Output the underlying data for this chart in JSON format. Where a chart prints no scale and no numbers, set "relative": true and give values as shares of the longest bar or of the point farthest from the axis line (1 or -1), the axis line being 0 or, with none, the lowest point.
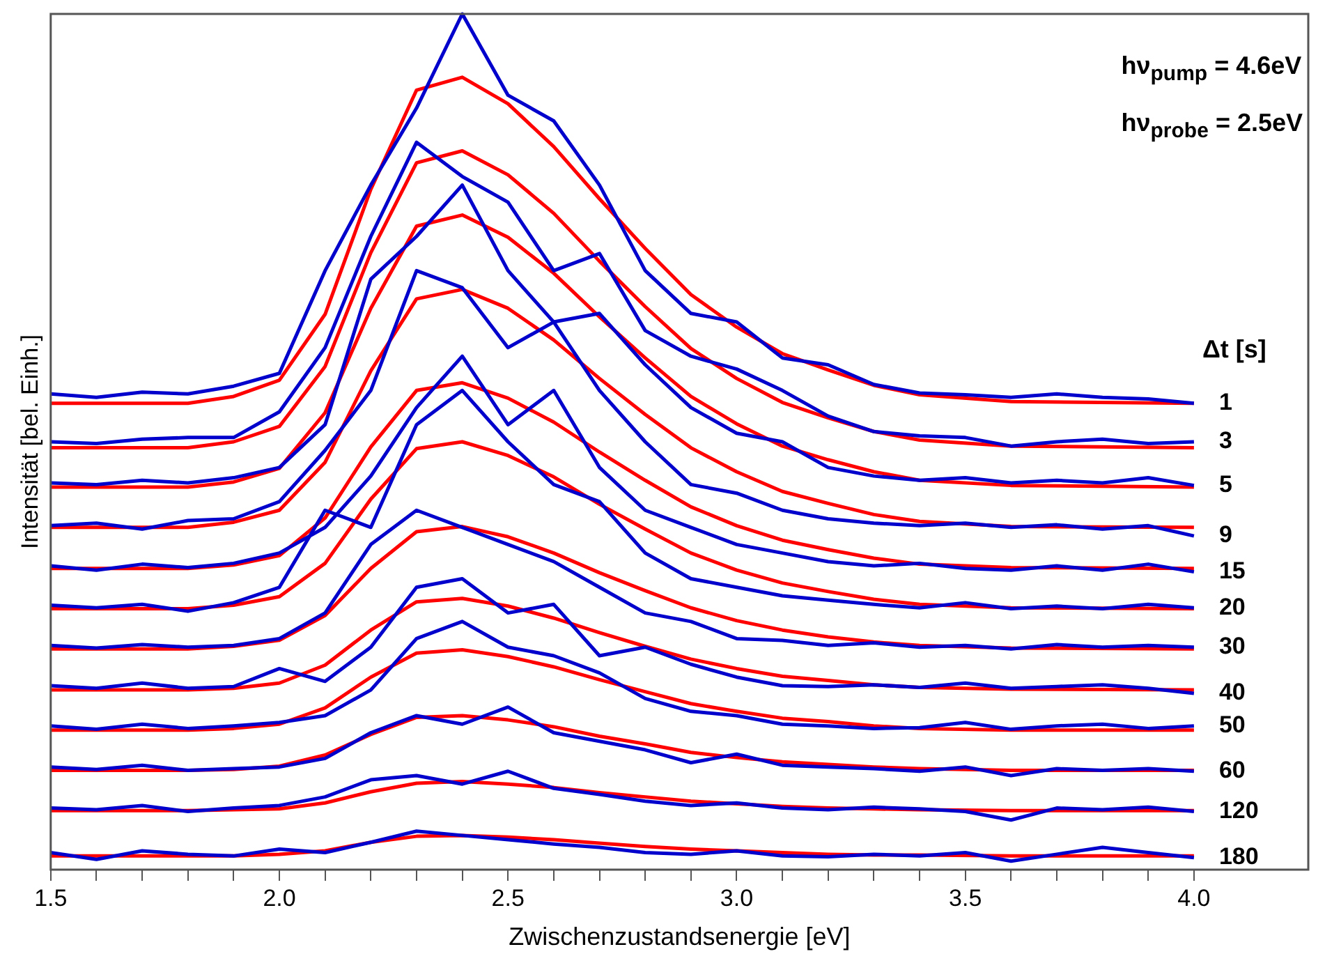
{
  "chart_data": {
    "type": "line",
    "relative": true,
    "xlabel": "Zwischenzustandsenergie [eV]",
    "ylabel": "Intensität [bel. Einh.]",
    "legend_title": "Δt [s]",
    "annotations": [
      "hν$_{pump}$ = 4.6eV",
      "hν$_{probe}$ = 2.5eV"
    ],
    "xlim": [
      1.5,
      4.25
    ],
    "xticks": [
      1.5,
      {
        "value": 1.6,
        "label": null
      },
      {
        "value": 1.7,
        "label": null
      },
      {
        "value": 1.8,
        "label": null
      },
      {
        "value": 1.9,
        "label": null
      },
      {
        "value": 2,
        "label": "2.0"
      },
      {
        "value": 2.1,
        "label": null
      },
      {
        "value": 2.2,
        "label": null
      },
      {
        "value": 2.3,
        "label": null
      },
      {
        "value": 2.4,
        "label": null
      },
      2.5,
      {
        "value": 2.6,
        "label": null
      },
      {
        "value": 2.7,
        "label": null
      },
      {
        "value": 2.8,
        "label": null
      },
      {
        "value": 2.9,
        "label": null
      },
      {
        "value": 3,
        "label": "3.0"
      },
      {
        "value": 3.1,
        "label": null
      },
      {
        "value": 3.2,
        "label": null
      },
      {
        "value": 3.3,
        "label": null
      },
      {
        "value": 3.4,
        "label": null
      },
      3.5,
      {
        "value": 3.6,
        "label": null
      },
      {
        "value": 3.7,
        "label": null
      },
      {
        "value": 3.8,
        "label": null
      },
      {
        "value": 3.9,
        "label": null
      },
      {
        "value": 4,
        "label": "4.0"
      }
    ],
    "grid": false,
    "legend": false,
    "marker": "none",
    "line_style": "solid",
    "series": [
      {
        "name": "1",
        "color": "#0000cc",
        "x": [
          1.5,
          1.6,
          1.7,
          1.8,
          1.9,
          2.0,
          2.1,
          2.2,
          2.3,
          2.4,
          2.5,
          2.6,
          2.7,
          2.8,
          2.9,
          3.0,
          3.1,
          3.2,
          3.3,
          3.4,
          3.5,
          3.6,
          3.7,
          3.8,
          3.9,
          4.0
        ],
        "values": [
          0.556,
          0.552,
          0.558,
          0.556,
          0.565,
          0.58,
          0.7,
          0.8,
          0.89,
          1.0,
          0.905,
          0.875,
          0.8,
          0.7,
          0.65,
          0.64,
          0.598,
          0.59,
          0.567,
          0.557,
          0.555,
          0.552,
          0.556,
          0.552,
          0.55,
          0.545
        ]
      },
      {
        "name": "3",
        "color": "#0000cc",
        "x": [
          1.5,
          1.6,
          1.7,
          1.8,
          1.9,
          2.0,
          2.1,
          2.2,
          2.3,
          2.4,
          2.5,
          2.6,
          2.7,
          2.8,
          2.9,
          3.0,
          3.1,
          3.2,
          3.3,
          3.4,
          3.5,
          3.6,
          3.7,
          3.8,
          3.9,
          4.0
        ],
        "values": [
          0.5,
          0.498,
          0.503,
          0.505,
          0.505,
          0.535,
          0.61,
          0.74,
          0.85,
          0.81,
          0.78,
          0.7,
          0.72,
          0.63,
          0.6,
          0.585,
          0.56,
          0.53,
          0.512,
          0.507,
          0.505,
          0.495,
          0.5,
          0.503,
          0.498,
          0.5
        ]
      },
      {
        "name": "5",
        "color": "#0000cc",
        "x": [
          1.5,
          1.6,
          1.7,
          1.8,
          1.9,
          2.0,
          2.1,
          2.2,
          2.3,
          2.4,
          2.5,
          2.6,
          2.7,
          2.8,
          2.9,
          3.0,
          3.1,
          3.2,
          3.3,
          3.4,
          3.5,
          3.6,
          3.7,
          3.8,
          3.9,
          4.0
        ],
        "values": [
          0.452,
          0.45,
          0.455,
          0.452,
          0.458,
          0.47,
          0.52,
          0.69,
          0.74,
          0.8,
          0.7,
          0.64,
          0.65,
          0.59,
          0.54,
          0.51,
          0.5,
          0.47,
          0.46,
          0.455,
          0.458,
          0.452,
          0.455,
          0.452,
          0.458,
          0.449
        ]
      },
      {
        "name": "9",
        "color": "#0000cc",
        "x": [
          1.5,
          1.6,
          1.7,
          1.8,
          1.9,
          2.0,
          2.1,
          2.2,
          2.3,
          2.4,
          2.5,
          2.6,
          2.7,
          2.8,
          2.9,
          3.0,
          3.1,
          3.2,
          3.3,
          3.4,
          3.5,
          3.6,
          3.7,
          3.8,
          3.9,
          4.0
        ],
        "values": [
          0.402,
          0.405,
          0.398,
          0.408,
          0.41,
          0.43,
          0.49,
          0.56,
          0.7,
          0.68,
          0.61,
          0.64,
          0.56,
          0.5,
          0.45,
          0.44,
          0.42,
          0.41,
          0.405,
          0.402,
          0.405,
          0.4,
          0.403,
          0.398,
          0.402,
          0.39
        ]
      },
      {
        "name": "15",
        "color": "#0000cc",
        "x": [
          1.5,
          1.6,
          1.7,
          1.8,
          1.9,
          2.0,
          2.1,
          2.2,
          2.3,
          2.4,
          2.5,
          2.6,
          2.7,
          2.8,
          2.9,
          3.0,
          3.1,
          3.2,
          3.3,
          3.4,
          3.5,
          3.6,
          3.7,
          3.8,
          3.9,
          4.0
        ],
        "values": [
          0.355,
          0.35,
          0.357,
          0.353,
          0.358,
          0.37,
          0.4,
          0.46,
          0.54,
          0.6,
          0.52,
          0.56,
          0.47,
          0.42,
          0.4,
          0.38,
          0.37,
          0.36,
          0.355,
          0.358,
          0.352,
          0.35,
          0.355,
          0.35,
          0.357,
          0.348
        ]
      },
      {
        "name": "20",
        "color": "#0000cc",
        "x": [
          1.5,
          1.6,
          1.7,
          1.8,
          1.9,
          2.0,
          2.1,
          2.2,
          2.3,
          2.4,
          2.5,
          2.6,
          2.7,
          2.8,
          2.9,
          3.0,
          3.1,
          3.2,
          3.3,
          3.4,
          3.5,
          3.6,
          3.7,
          3.8,
          3.9,
          4.0
        ],
        "values": [
          0.309,
          0.306,
          0.31,
          0.302,
          0.312,
          0.33,
          0.42,
          0.4,
          0.52,
          0.56,
          0.5,
          0.45,
          0.43,
          0.37,
          0.34,
          0.33,
          0.32,
          0.315,
          0.31,
          0.306,
          0.312,
          0.305,
          0.308,
          0.305,
          0.31,
          0.306
        ]
      },
      {
        "name": "30",
        "color": "#0000cc",
        "x": [
          1.5,
          1.6,
          1.7,
          1.8,
          1.9,
          2.0,
          2.1,
          2.2,
          2.3,
          2.4,
          2.5,
          2.6,
          2.7,
          2.8,
          2.9,
          3.0,
          3.1,
          3.2,
          3.3,
          3.4,
          3.5,
          3.6,
          3.7,
          3.8,
          3.9,
          4.0
        ],
        "values": [
          0.262,
          0.259,
          0.263,
          0.26,
          0.262,
          0.27,
          0.3,
          0.38,
          0.42,
          0.4,
          0.38,
          0.36,
          0.33,
          0.3,
          0.29,
          0.27,
          0.268,
          0.262,
          0.265,
          0.26,
          0.262,
          0.258,
          0.263,
          0.26,
          0.262,
          0.26
        ]
      },
      {
        "name": "40",
        "color": "#0000cc",
        "x": [
          1.5,
          1.6,
          1.7,
          1.8,
          1.9,
          2.0,
          2.1,
          2.2,
          2.3,
          2.4,
          2.5,
          2.6,
          2.7,
          2.8,
          2.9,
          3.0,
          3.1,
          3.2,
          3.3,
          3.4,
          3.5,
          3.6,
          3.7,
          3.8,
          3.9,
          4.0
        ],
        "values": [
          0.215,
          0.212,
          0.218,
          0.212,
          0.214,
          0.235,
          0.22,
          0.26,
          0.33,
          0.34,
          0.3,
          0.31,
          0.25,
          0.26,
          0.24,
          0.225,
          0.215,
          0.214,
          0.216,
          0.213,
          0.218,
          0.212,
          0.214,
          0.216,
          0.212,
          0.206
        ]
      },
      {
        "name": "50",
        "color": "#0000cc",
        "x": [
          1.5,
          1.6,
          1.7,
          1.8,
          1.9,
          2.0,
          2.1,
          2.2,
          2.3,
          2.4,
          2.5,
          2.6,
          2.7,
          2.8,
          2.9,
          3.0,
          3.1,
          3.2,
          3.3,
          3.4,
          3.5,
          3.6,
          3.7,
          3.8,
          3.9,
          4.0
        ],
        "values": [
          0.168,
          0.164,
          0.17,
          0.165,
          0.168,
          0.172,
          0.18,
          0.21,
          0.27,
          0.29,
          0.26,
          0.25,
          0.23,
          0.2,
          0.185,
          0.18,
          0.17,
          0.168,
          0.165,
          0.166,
          0.172,
          0.164,
          0.168,
          0.17,
          0.165,
          0.168
        ]
      },
      {
        "name": "60",
        "color": "#0000cc",
        "x": [
          1.5,
          1.6,
          1.7,
          1.8,
          1.9,
          2.0,
          2.1,
          2.2,
          2.3,
          2.4,
          2.5,
          2.6,
          2.7,
          2.8,
          2.9,
          3.0,
          3.1,
          3.2,
          3.3,
          3.4,
          3.5,
          3.6,
          3.7,
          3.8,
          3.9,
          4.0
        ],
        "values": [
          0.12,
          0.117,
          0.122,
          0.116,
          0.118,
          0.12,
          0.13,
          0.16,
          0.18,
          0.17,
          0.19,
          0.16,
          0.15,
          0.14,
          0.125,
          0.135,
          0.122,
          0.12,
          0.118,
          0.115,
          0.12,
          0.11,
          0.118,
          0.116,
          0.118,
          0.115
        ]
      },
      {
        "name": "120",
        "color": "#0000cc",
        "x": [
          1.5,
          1.6,
          1.7,
          1.8,
          1.9,
          2.0,
          2.1,
          2.2,
          2.3,
          2.4,
          2.5,
          2.6,
          2.7,
          2.8,
          2.9,
          3.0,
          3.1,
          3.2,
          3.3,
          3.4,
          3.5,
          3.6,
          3.7,
          3.8,
          3.9,
          4.0
        ],
        "values": [
          0.072,
          0.07,
          0.075,
          0.068,
          0.072,
          0.075,
          0.085,
          0.105,
          0.11,
          0.1,
          0.115,
          0.095,
          0.088,
          0.08,
          0.075,
          0.078,
          0.072,
          0.07,
          0.073,
          0.071,
          0.068,
          0.058,
          0.072,
          0.07,
          0.073,
          0.068
        ]
      },
      {
        "name": "180",
        "color": "#0000cc",
        "x": [
          1.5,
          1.6,
          1.7,
          1.8,
          1.9,
          2.0,
          2.1,
          2.2,
          2.3,
          2.4,
          2.5,
          2.6,
          2.7,
          2.8,
          2.9,
          3.0,
          3.1,
          3.2,
          3.3,
          3.4,
          3.5,
          3.6,
          3.7,
          3.8,
          3.9,
          4.0
        ],
        "values": [
          0.02,
          0.012,
          0.022,
          0.018,
          0.016,
          0.024,
          0.02,
          0.032,
          0.045,
          0.04,
          0.035,
          0.03,
          0.026,
          0.02,
          0.018,
          0.022,
          0.016,
          0.015,
          0.018,
          0.016,
          0.02,
          0.01,
          0.018,
          0.026,
          0.02,
          0.014
        ]
      },
      {
        "color": "#ff0000",
        "x": [
          1.5,
          1.8,
          1.9,
          2.0,
          2.1,
          2.2,
          2.3,
          2.4,
          2.5,
          2.6,
          2.7,
          2.8,
          2.9,
          3.0,
          3.1,
          3.2,
          3.3,
          3.4,
          3.6,
          4.0
        ],
        "values": [
          0.545,
          0.545,
          0.553,
          0.572,
          0.649,
          0.795,
          0.911,
          0.926,
          0.895,
          0.845,
          0.784,
          0.726,
          0.672,
          0.634,
          0.603,
          0.584,
          0.566,
          0.555,
          0.547,
          0.545
        ]
      },
      {
        "color": "#ff0000",
        "x": [
          1.5,
          1.8,
          1.9,
          2.0,
          2.1,
          2.2,
          2.3,
          2.4,
          2.5,
          2.6,
          2.7,
          2.8,
          2.9,
          3.0,
          3.1,
          3.2,
          3.3,
          3.4,
          3.6,
          4.0
        ],
        "values": [
          0.493,
          0.493,
          0.5,
          0.518,
          0.588,
          0.721,
          0.826,
          0.84,
          0.812,
          0.767,
          0.711,
          0.658,
          0.609,
          0.574,
          0.546,
          0.528,
          0.512,
          0.502,
          0.495,
          0.493
        ]
      },
      {
        "color": "#ff0000",
        "x": [
          1.5,
          1.8,
          1.9,
          2.0,
          2.1,
          2.2,
          2.3,
          2.4,
          2.5,
          2.6,
          2.7,
          2.8,
          2.9,
          3.0,
          3.1,
          3.2,
          3.3,
          3.4,
          3.6,
          4.0
        ],
        "values": [
          0.447,
          0.447,
          0.453,
          0.469,
          0.534,
          0.656,
          0.752,
          0.765,
          0.739,
          0.697,
          0.646,
          0.598,
          0.553,
          0.521,
          0.495,
          0.479,
          0.465,
          0.455,
          0.449,
          0.447
        ]
      },
      {
        "color": "#ff0000",
        "x": [
          1.5,
          1.8,
          1.9,
          2.0,
          2.1,
          2.2,
          2.3,
          2.4,
          2.5,
          2.6,
          2.7,
          2.8,
          2.9,
          3.0,
          3.1,
          3.2,
          3.3,
          3.4,
          3.6,
          4.0
        ],
        "values": [
          0.4,
          0.4,
          0.406,
          0.42,
          0.476,
          0.583,
          0.667,
          0.678,
          0.656,
          0.619,
          0.574,
          0.532,
          0.493,
          0.465,
          0.442,
          0.428,
          0.415,
          0.407,
          0.401,
          0.4
        ]
      },
      {
        "color": "#ff0000",
        "x": [
          1.5,
          1.8,
          1.9,
          2.0,
          2.1,
          2.2,
          2.3,
          2.4,
          2.5,
          2.6,
          2.7,
          2.8,
          2.9,
          3.0,
          3.1,
          3.2,
          3.3,
          3.4,
          3.6,
          4.0
        ],
        "values": [
          0.352,
          0.352,
          0.356,
          0.367,
          0.411,
          0.494,
          0.56,
          0.569,
          0.551,
          0.523,
          0.488,
          0.455,
          0.424,
          0.402,
          0.385,
          0.374,
          0.364,
          0.357,
          0.353,
          0.352
        ]
      },
      {
        "color": "#ff0000",
        "x": [
          1.5,
          1.8,
          1.9,
          2.0,
          2.1,
          2.2,
          2.3,
          2.4,
          2.5,
          2.6,
          2.7,
          2.8,
          2.9,
          3.0,
          3.1,
          3.2,
          3.3,
          3.4,
          3.6,
          4.0
        ],
        "values": [
          0.305,
          0.305,
          0.309,
          0.319,
          0.358,
          0.433,
          0.492,
          0.5,
          0.484,
          0.459,
          0.427,
          0.398,
          0.37,
          0.35,
          0.335,
          0.325,
          0.316,
          0.31,
          0.306,
          0.305
        ]
      },
      {
        "color": "#ff0000",
        "x": [
          1.5,
          1.8,
          1.9,
          2.0,
          2.1,
          2.2,
          2.3,
          2.4,
          2.5,
          2.6,
          2.7,
          2.8,
          2.9,
          3.0,
          3.1,
          3.2,
          3.3,
          3.4,
          3.6,
          4.0
        ],
        "values": [
          0.258,
          0.258,
          0.261,
          0.268,
          0.297,
          0.352,
          0.395,
          0.401,
          0.389,
          0.37,
          0.347,
          0.326,
          0.306,
          0.291,
          0.28,
          0.272,
          0.266,
          0.262,
          0.259,
          0.258
        ]
      },
      {
        "color": "#ff0000",
        "x": [
          1.5,
          1.8,
          1.9,
          2.0,
          2.1,
          2.2,
          2.3,
          2.4,
          2.5,
          2.6,
          2.7,
          2.8,
          2.9,
          3.0,
          3.1,
          3.2,
          3.3,
          3.4,
          3.6,
          4.0
        ],
        "values": [
          0.21,
          0.21,
          0.212,
          0.218,
          0.239,
          0.28,
          0.313,
          0.317,
          0.308,
          0.294,
          0.277,
          0.261,
          0.246,
          0.235,
          0.226,
          0.221,
          0.216,
          0.213,
          0.211,
          0.21
        ]
      },
      {
        "color": "#ff0000",
        "x": [
          1.5,
          1.8,
          1.9,
          2.0,
          2.1,
          2.2,
          2.3,
          2.4,
          2.5,
          2.6,
          2.7,
          2.8,
          2.9,
          3.0,
          3.1,
          3.2,
          3.3,
          3.4,
          3.6,
          4.0
        ],
        "values": [
          0.163,
          0.163,
          0.165,
          0.17,
          0.189,
          0.225,
          0.253,
          0.257,
          0.249,
          0.237,
          0.222,
          0.208,
          0.194,
          0.185,
          0.177,
          0.173,
          0.168,
          0.165,
          0.163,
          0.163
        ]
      },
      {
        "color": "#ff0000",
        "x": [
          1.5,
          1.8,
          1.9,
          2.0,
          2.1,
          2.2,
          2.3,
          2.4,
          2.5,
          2.6,
          2.7,
          2.8,
          2.9,
          3.0,
          3.1,
          3.2,
          3.3,
          3.4,
          3.6,
          4.0
        ],
        "values": [
          0.116,
          0.116,
          0.117,
          0.121,
          0.134,
          0.158,
          0.178,
          0.18,
          0.175,
          0.167,
          0.156,
          0.147,
          0.137,
          0.131,
          0.126,
          0.123,
          0.12,
          0.118,
          0.116,
          0.116
        ]
      },
      {
        "color": "#ff0000",
        "x": [
          1.5,
          1.8,
          1.9,
          2.0,
          2.1,
          2.2,
          2.3,
          2.4,
          2.5,
          2.6,
          2.7,
          2.8,
          2.9,
          3.0,
          3.1,
          3.2,
          3.3,
          3.4,
          3.6,
          4.0
        ],
        "values": [
          0.069,
          0.069,
          0.07,
          0.071,
          0.078,
          0.091,
          0.101,
          0.103,
          0.1,
          0.096,
          0.09,
          0.085,
          0.08,
          0.077,
          0.074,
          0.072,
          0.071,
          0.07,
          0.069,
          0.069
        ]
      },
      {
        "color": "#ff0000",
        "x": [
          1.5,
          1.8,
          1.9,
          2.0,
          2.1,
          2.2,
          2.3,
          2.4,
          2.5,
          2.6,
          2.7,
          2.8,
          2.9,
          3.0,
          3.1,
          3.2,
          3.3,
          3.4,
          3.6,
          4.0
        ],
        "values": [
          0.016,
          0.016,
          0.016,
          0.018,
          0.022,
          0.032,
          0.039,
          0.04,
          0.038,
          0.035,
          0.031,
          0.027,
          0.024,
          0.022,
          0.02,
          0.018,
          0.017,
          0.017,
          0.016,
          0.016
        ]
      }
    ]
  }
}
